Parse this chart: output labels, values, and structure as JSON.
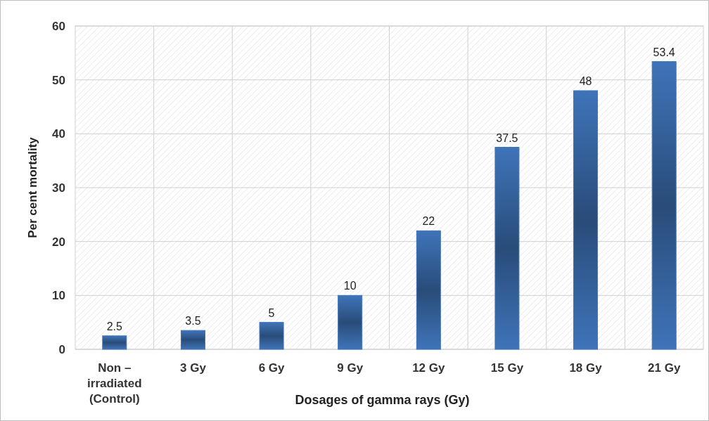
{
  "chart_data": {
    "type": "bar",
    "xlabel": "Dosages of gamma rays (Gy)",
    "ylabel": "Per cent mortality",
    "categories": [
      "Non – irradiated (Control)",
      "3 Gy",
      "6 Gy",
      "9 Gy",
      "12 Gy",
      "15 Gy",
      "18 Gy",
      "21 Gy"
    ],
    "values": [
      2.5,
      3.5,
      5,
      10,
      22,
      37.5,
      48,
      53.4
    ],
    "color": "#3f74b9",
    "ylim": [
      0,
      60
    ],
    "yticks": [
      0,
      10,
      20,
      30,
      40,
      50,
      60
    ],
    "grid": true,
    "data_labels": true
  }
}
